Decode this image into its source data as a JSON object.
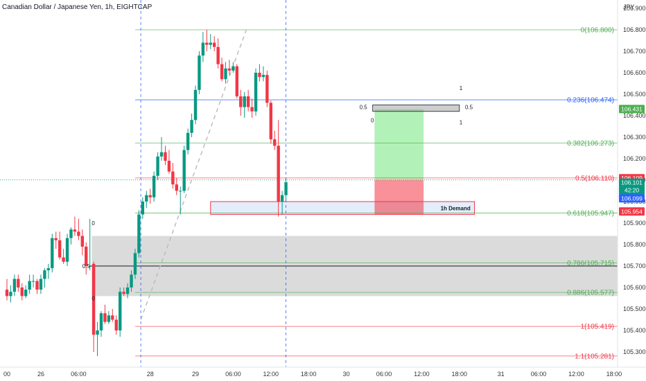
{
  "chart_data": {
    "type": "candlestick",
    "title": "Canadian Dollar / Japanese Yen, 1h, EIGHTCAP",
    "currency": "JPY",
    "ylim": [
      105.25,
      106.98
    ],
    "y_ticks": [
      "106.900",
      "106.800",
      "106.700",
      "106.600",
      "106.500",
      "106.400",
      "106.300",
      "106.200",
      "106.100",
      "106.000",
      "105.900",
      "105.800",
      "105.700",
      "105.600",
      "105.500",
      "105.400",
      "105.300"
    ],
    "x_ticks": [
      {
        "i": 0,
        "label": "00"
      },
      {
        "i": 9,
        "label": "26"
      },
      {
        "i": 19,
        "label": "06:00"
      },
      {
        "i": 38,
        "label": "28"
      },
      {
        "i": 50,
        "label": "29"
      },
      {
        "i": 60,
        "label": "06:00"
      },
      {
        "i": 70,
        "label": "12:00"
      },
      {
        "i": 80,
        "label": "18:00"
      },
      {
        "i": 90,
        "label": "30"
      },
      {
        "i": 100,
        "label": "06:00"
      },
      {
        "i": 110,
        "label": "12:00"
      },
      {
        "i": 120,
        "label": "18:00"
      },
      {
        "i": 131,
        "label": "31"
      },
      {
        "i": 141,
        "label": "06:00"
      },
      {
        "i": 151,
        "label": "12:00"
      },
      {
        "i": 161,
        "label": "18:00"
      }
    ],
    "candles": [
      {
        "i": 0,
        "o": 105.59,
        "h": 105.64,
        "l": 105.54,
        "c": 105.56
      },
      {
        "i": 1,
        "o": 105.56,
        "h": 105.61,
        "l": 105.53,
        "c": 105.58
      },
      {
        "i": 2,
        "o": 105.58,
        "h": 105.66,
        "l": 105.56,
        "c": 105.64
      },
      {
        "i": 3,
        "o": 105.64,
        "h": 105.66,
        "l": 105.58,
        "c": 105.6
      },
      {
        "i": 4,
        "o": 105.6,
        "h": 105.62,
        "l": 105.54,
        "c": 105.56
      },
      {
        "i": 5,
        "o": 105.56,
        "h": 105.61,
        "l": 105.55,
        "c": 105.59
      },
      {
        "i": 6,
        "o": 105.59,
        "h": 105.66,
        "l": 105.57,
        "c": 105.63
      },
      {
        "i": 7,
        "o": 105.63,
        "h": 105.66,
        "l": 105.6,
        "c": 105.63
      },
      {
        "i": 8,
        "o": 105.63,
        "h": 105.64,
        "l": 105.57,
        "c": 105.59
      },
      {
        "i": 9,
        "o": 105.59,
        "h": 105.66,
        "l": 105.57,
        "c": 105.64
      },
      {
        "i": 10,
        "o": 105.64,
        "h": 105.69,
        "l": 105.6,
        "c": 105.68
      },
      {
        "i": 11,
        "o": 105.68,
        "h": 105.71,
        "l": 105.64,
        "c": 105.69
      },
      {
        "i": 12,
        "o": 105.69,
        "h": 105.85,
        "l": 105.67,
        "c": 105.83
      },
      {
        "i": 13,
        "o": 105.83,
        "h": 105.86,
        "l": 105.78,
        "c": 105.82
      },
      {
        "i": 14,
        "o": 105.82,
        "h": 105.86,
        "l": 105.73,
        "c": 105.74
      },
      {
        "i": 15,
        "o": 105.74,
        "h": 105.78,
        "l": 105.71,
        "c": 105.72
      },
      {
        "i": 16,
        "o": 105.72,
        "h": 105.85,
        "l": 105.7,
        "c": 105.83
      },
      {
        "i": 17,
        "o": 105.83,
        "h": 105.88,
        "l": 105.8,
        "c": 105.87
      },
      {
        "i": 18,
        "o": 105.87,
        "h": 105.93,
        "l": 105.84,
        "c": 105.86
      },
      {
        "i": 19,
        "o": 105.86,
        "h": 105.92,
        "l": 105.82,
        "c": 105.84
      },
      {
        "i": 20,
        "o": 105.84,
        "h": 105.87,
        "l": 105.75,
        "c": 105.79
      },
      {
        "i": 21,
        "o": 105.79,
        "h": 105.81,
        "l": 105.66,
        "c": 105.7
      },
      {
        "i": 22,
        "o": 105.7,
        "h": 105.92,
        "l": 105.68,
        "c": 105.7
      },
      {
        "i": 23,
        "o": 105.71,
        "h": 105.72,
        "l": 105.3,
        "c": 105.38
      },
      {
        "i": 24,
        "o": 105.38,
        "h": 105.44,
        "l": 105.28,
        "c": 105.4
      },
      {
        "i": 25,
        "o": 105.4,
        "h": 105.49,
        "l": 105.37,
        "c": 105.48
      },
      {
        "i": 26,
        "o": 105.48,
        "h": 105.52,
        "l": 105.43,
        "c": 105.44
      },
      {
        "i": 27,
        "o": 105.44,
        "h": 105.49,
        "l": 105.43,
        "c": 105.47
      },
      {
        "i": 28,
        "o": 105.47,
        "h": 105.5,
        "l": 105.44,
        "c": 105.45
      },
      {
        "i": 29,
        "o": 105.45,
        "h": 105.47,
        "l": 105.38,
        "c": 105.4
      },
      {
        "i": 30,
        "o": 105.4,
        "h": 105.6,
        "l": 105.37,
        "c": 105.58
      },
      {
        "i": 31,
        "o": 105.58,
        "h": 105.6,
        "l": 105.56,
        "c": 105.57
      },
      {
        "i": 32,
        "o": 105.57,
        "h": 105.62,
        "l": 105.55,
        "c": 105.6
      },
      {
        "i": 33,
        "o": 105.6,
        "h": 105.68,
        "l": 105.58,
        "c": 105.66
      },
      {
        "i": 34,
        "o": 105.66,
        "h": 105.78,
        "l": 105.64,
        "c": 105.76
      },
      {
        "i": 35,
        "o": 105.76,
        "h": 105.96,
        "l": 105.74,
        "c": 105.94
      },
      {
        "i": 36,
        "o": 105.94,
        "h": 106.02,
        "l": 105.92,
        "c": 106.0
      },
      {
        "i": 37,
        "o": 106.0,
        "h": 106.05,
        "l": 105.97,
        "c": 106.03
      },
      {
        "i": 38,
        "o": 106.03,
        "h": 106.06,
        "l": 105.99,
        "c": 106.02
      },
      {
        "i": 39,
        "o": 106.02,
        "h": 106.14,
        "l": 106.0,
        "c": 106.12
      },
      {
        "i": 40,
        "o": 106.12,
        "h": 106.23,
        "l": 106.1,
        "c": 106.21
      },
      {
        "i": 41,
        "o": 106.21,
        "h": 106.3,
        "l": 106.19,
        "c": 106.23
      },
      {
        "i": 42,
        "o": 106.23,
        "h": 106.26,
        "l": 106.17,
        "c": 106.19
      },
      {
        "i": 43,
        "o": 106.19,
        "h": 106.24,
        "l": 106.13,
        "c": 106.14
      },
      {
        "i": 44,
        "o": 106.14,
        "h": 106.18,
        "l": 106.06,
        "c": 106.08
      },
      {
        "i": 45,
        "o": 106.08,
        "h": 106.11,
        "l": 106.03,
        "c": 106.05
      },
      {
        "i": 46,
        "o": 106.05,
        "h": 106.07,
        "l": 105.94,
        "c": 106.05
      },
      {
        "i": 47,
        "o": 106.05,
        "h": 106.26,
        "l": 106.04,
        "c": 106.24
      },
      {
        "i": 48,
        "o": 106.24,
        "h": 106.34,
        "l": 106.22,
        "c": 106.32
      },
      {
        "i": 49,
        "o": 106.32,
        "h": 106.41,
        "l": 106.3,
        "c": 106.38
      },
      {
        "i": 50,
        "o": 106.38,
        "h": 106.54,
        "l": 106.36,
        "c": 106.52
      },
      {
        "i": 51,
        "o": 106.52,
        "h": 106.7,
        "l": 106.5,
        "c": 106.68
      },
      {
        "i": 52,
        "o": 106.68,
        "h": 106.79,
        "l": 106.65,
        "c": 106.74
      },
      {
        "i": 53,
        "o": 106.74,
        "h": 106.8,
        "l": 106.7,
        "c": 106.73
      },
      {
        "i": 54,
        "o": 106.73,
        "h": 106.78,
        "l": 106.71,
        "c": 106.74
      },
      {
        "i": 55,
        "o": 106.74,
        "h": 106.77,
        "l": 106.7,
        "c": 106.72
      },
      {
        "i": 56,
        "o": 106.72,
        "h": 106.76,
        "l": 106.62,
        "c": 106.64
      },
      {
        "i": 57,
        "o": 106.64,
        "h": 106.67,
        "l": 106.56,
        "c": 106.57
      },
      {
        "i": 58,
        "o": 106.57,
        "h": 106.65,
        "l": 106.55,
        "c": 106.62
      },
      {
        "i": 59,
        "o": 106.62,
        "h": 106.66,
        "l": 106.59,
        "c": 106.61
      },
      {
        "i": 60,
        "o": 106.61,
        "h": 106.65,
        "l": 106.6,
        "c": 106.63
      },
      {
        "i": 61,
        "o": 106.63,
        "h": 106.64,
        "l": 106.48,
        "c": 106.49
      },
      {
        "i": 62,
        "o": 106.49,
        "h": 106.52,
        "l": 106.4,
        "c": 106.44
      },
      {
        "i": 63,
        "o": 106.44,
        "h": 106.51,
        "l": 106.39,
        "c": 106.49
      },
      {
        "i": 64,
        "o": 106.49,
        "h": 106.52,
        "l": 106.42,
        "c": 106.44
      },
      {
        "i": 65,
        "o": 106.44,
        "h": 106.48,
        "l": 106.39,
        "c": 106.42
      },
      {
        "i": 66,
        "o": 106.42,
        "h": 106.62,
        "l": 106.4,
        "c": 106.6
      },
      {
        "i": 67,
        "o": 106.6,
        "h": 106.64,
        "l": 106.56,
        "c": 106.58
      },
      {
        "i": 68,
        "o": 106.58,
        "h": 106.63,
        "l": 106.56,
        "c": 106.59
      },
      {
        "i": 69,
        "o": 106.59,
        "h": 106.61,
        "l": 106.44,
        "c": 106.46
      },
      {
        "i": 70,
        "o": 106.46,
        "h": 106.47,
        "l": 106.27,
        "c": 106.29
      },
      {
        "i": 71,
        "o": 106.29,
        "h": 106.33,
        "l": 106.24,
        "c": 106.26
      },
      {
        "i": 72,
        "o": 106.26,
        "h": 106.38,
        "l": 105.93,
        "c": 106.0
      },
      {
        "i": 73,
        "o": 106.0,
        "h": 106.05,
        "l": 105.94,
        "c": 106.03
      },
      {
        "i": 74,
        "o": 106.03,
        "h": 106.11,
        "l": 106.0,
        "c": 106.09
      }
    ],
    "fib_levels": [
      {
        "ratio": "0",
        "value": 106.8,
        "color": "#4caf50"
      },
      {
        "ratio": "0.236",
        "value": 106.474,
        "color": "#2962ff"
      },
      {
        "ratio": "0.382",
        "value": 106.273,
        "color": "#4caf50"
      },
      {
        "ratio": "0.5",
        "value": 106.11,
        "color": "#f23645"
      },
      {
        "ratio": "0.618",
        "value": 105.947,
        "color": "#4caf50"
      },
      {
        "ratio": "0.786",
        "value": 105.715,
        "color": "#4caf50"
      },
      {
        "ratio": "0.886",
        "value": 105.577,
        "color": "#4caf50"
      },
      {
        "ratio": "1",
        "value": 105.419,
        "color": "#f23645"
      },
      {
        "ratio": "1.1",
        "value": 105.281,
        "color": "#f23645"
      }
    ],
    "fib_label_texts": [
      "0(106.800)",
      "0.236(106.474)",
      "0.382(106.273)",
      "0.5(106.110)",
      "0.618(105.947)",
      "0.786(105.715)",
      "0.886(105.577)",
      "1(105.419)",
      "1.1(105.281)"
    ],
    "zones": {
      "demand_label": "1h Demand",
      "demand_top": 106.0,
      "demand_bottom": 105.94,
      "gray_top": 105.84,
      "gray_bottom": 105.56,
      "gray_mid": 105.7,
      "small_box_top": 106.45,
      "small_box_bottom": 106.42,
      "tp_top": 106.43,
      "sl_bottom": 105.94,
      "entry": 106.1
    },
    "zone_marks": [
      "0",
      "0.5",
      "0",
      "1",
      "0.5",
      "1",
      "0.5",
      "0"
    ],
    "price_tags": [
      {
        "text": "106.431",
        "value": 106.431,
        "bg": "#4caf50"
      },
      {
        "text": "106.109",
        "value": 106.109,
        "bg": "#f23645"
      },
      {
        "text": "106.101",
        "value": 106.101,
        "bg": "#089981"
      },
      {
        "text": "42:20",
        "value": 106.101,
        "bg": "#089981"
      },
      {
        "text": "106.099",
        "value": 106.099,
        "bg": "#2962ff"
      },
      {
        "text": "105.954",
        "value": 105.954,
        "bg": "#f23645"
      }
    ],
    "colors": {
      "up": "#089981",
      "down": "#f23645",
      "grid_blue": "#2962ff"
    }
  }
}
